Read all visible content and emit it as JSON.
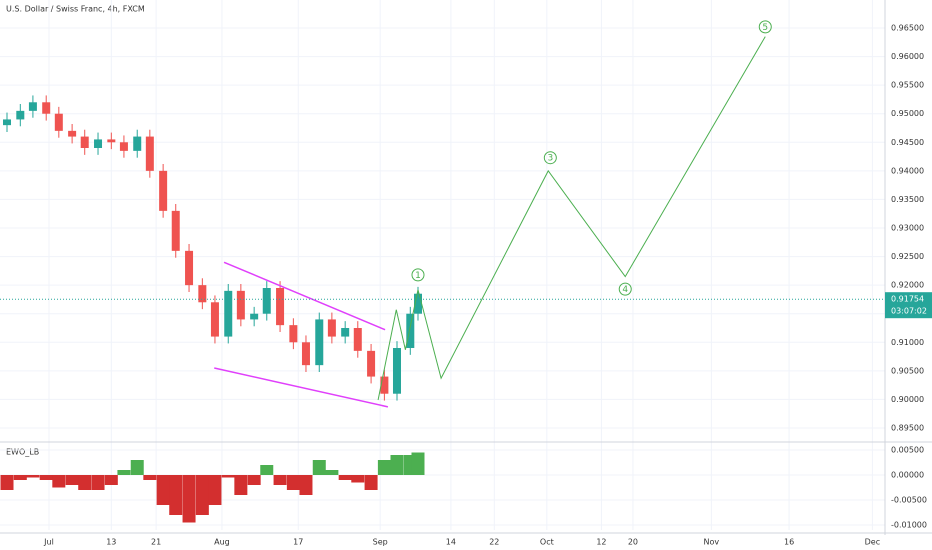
{
  "chart_data": {
    "type": "candlestick",
    "title": "U.S. Dollar / Swiss Franc, 4h, FXCM",
    "up_color": "#26a69a",
    "down_color": "#ef5350",
    "x": [
      1,
      2.9,
      4.7,
      6.6,
      8.4,
      10.3,
      12.1,
      14,
      15.9,
      17.7,
      19.6,
      21.4,
      23.3,
      25.1,
      27,
      28.9,
      30.7,
      32.6,
      34.4,
      36.3,
      38.1,
      40,
      41.9,
      43.7,
      45.6,
      47.4,
      49.3,
      51.1,
      53,
      54.9,
      56.7,
      58.6,
      59.7
    ],
    "open": [
      0.948,
      0.949,
      0.9505,
      0.952,
      0.95,
      0.947,
      0.946,
      0.944,
      0.9455,
      0.945,
      0.9435,
      0.946,
      0.94,
      0.933,
      0.926,
      0.92,
      0.917,
      0.911,
      0.919,
      0.914,
      0.915,
      0.9195,
      0.913,
      0.91,
      0.906,
      0.914,
      0.911,
      0.9125,
      0.9085,
      0.904,
      0.901,
      0.909,
      0.915
    ],
    "high": [
      0.9502,
      0.9517,
      0.9532,
      0.9532,
      0.9512,
      0.9482,
      0.9472,
      0.9467,
      0.9467,
      0.9462,
      0.9472,
      0.9472,
      0.9412,
      0.9342,
      0.9272,
      0.9212,
      0.9182,
      0.9202,
      0.9202,
      0.9162,
      0.9207,
      0.9207,
      0.9142,
      0.9112,
      0.9152,
      0.9152,
      0.9137,
      0.9137,
      0.9097,
      0.9052,
      0.9102,
      0.9162,
      0.9197
    ],
    "low": [
      0.9468,
      0.9478,
      0.9493,
      0.9488,
      0.9458,
      0.9448,
      0.9428,
      0.9428,
      0.9438,
      0.9423,
      0.9423,
      0.9388,
      0.9318,
      0.9248,
      0.9188,
      0.9158,
      0.9098,
      0.9098,
      0.9128,
      0.9128,
      0.9138,
      0.9118,
      0.9088,
      0.9048,
      0.9048,
      0.9098,
      0.9098,
      0.9073,
      0.9028,
      0.8998,
      0.8998,
      0.9078,
      0.9138
    ],
    "close": [
      0.949,
      0.9505,
      0.952,
      0.95,
      0.947,
      0.946,
      0.944,
      0.9455,
      0.945,
      0.9435,
      0.946,
      0.94,
      0.933,
      0.926,
      0.92,
      0.917,
      0.911,
      0.919,
      0.914,
      0.915,
      0.9195,
      0.913,
      0.91,
      0.906,
      0.914,
      0.911,
      0.9125,
      0.9085,
      0.904,
      0.901,
      0.909,
      0.915,
      0.9185
    ],
    "xlim": [
      0,
      126.4
    ],
    "xticks": [
      {
        "value": 7,
        "label": "Jul"
      },
      {
        "value": 15.9,
        "label": "13"
      },
      {
        "value": 22.3,
        "label": "21"
      },
      {
        "value": 31.7,
        "label": "Aug"
      },
      {
        "value": 42.6,
        "label": "17"
      },
      {
        "value": 54.3,
        "label": "Sep"
      },
      {
        "value": 64.4,
        "label": "14"
      },
      {
        "value": 70.6,
        "label": "22"
      },
      {
        "value": 78.1,
        "label": "Oct"
      },
      {
        "value": 85.9,
        "label": "12"
      },
      {
        "value": 90.4,
        "label": "20"
      },
      {
        "value": 101.6,
        "label": "Nov"
      },
      {
        "value": 112.7,
        "label": "16"
      },
      {
        "value": 124.6,
        "label": "Dec"
      }
    ],
    "ylim": [
      0.8929,
      0.9699
    ],
    "yticks": [
      {
        "value": 0.895,
        "label": "0.89500"
      },
      {
        "value": 0.9,
        "label": "0.90000"
      },
      {
        "value": 0.905,
        "label": "0.90500"
      },
      {
        "value": 0.91,
        "label": "0.91000"
      },
      {
        "value": 0.915,
        "label": "0.91500"
      },
      {
        "value": 0.92,
        "label": "0.92000"
      },
      {
        "value": 0.925,
        "label": "0.92500"
      },
      {
        "value": 0.93,
        "label": "0.93000"
      },
      {
        "value": 0.935,
        "label": "0.93500"
      },
      {
        "value": 0.94,
        "label": "0.94000"
      },
      {
        "value": 0.945,
        "label": "0.94500"
      },
      {
        "value": 0.95,
        "label": "0.95000"
      },
      {
        "value": 0.955,
        "label": "0.95500"
      },
      {
        "value": 0.96,
        "label": "0.96000"
      },
      {
        "value": 0.965,
        "label": "0.96500"
      }
    ],
    "grid": true,
    "last_price": 0.91754,
    "countdown": "03:07:02",
    "last_price_color": "#26a69a",
    "projection": {
      "color": "#4caf50",
      "x": [
        54,
        56.6,
        57.9,
        59.7,
        63,
        78.3,
        89.3,
        109.3
      ],
      "values": [
        0.8999,
        0.9157,
        0.9087,
        0.9192,
        0.9037,
        0.94,
        0.9215,
        0.9635
      ]
    },
    "trendlines": [
      {
        "color": "#e040fb",
        "x": [
          32,
          55
        ],
        "values": [
          0.924,
          0.9122
        ]
      },
      {
        "color": "#e040fb",
        "x": [
          30.6,
          55.4
        ],
        "values": [
          0.9055,
          0.8987
        ]
      }
    ],
    "annotations": [
      {
        "label": "1",
        "x": 59.7,
        "value": 0.9218
      },
      {
        "label": "3",
        "x": 78.6,
        "value": 0.9423
      },
      {
        "label": "4",
        "x": 89.3,
        "value": 0.9193
      },
      {
        "label": "5",
        "x": 109.3,
        "value": 0.9652
      }
    ],
    "indicator": {
      "name": "EWO_LB",
      "up_color": "#4caf50",
      "down_color": "#d32f2f",
      "values": [
        -0.003,
        -0.001,
        -0.0005,
        -0.001,
        -0.0025,
        -0.002,
        -0.003,
        -0.003,
        -0.002,
        0.001,
        0.003,
        -0.001,
        -0.006,
        -0.008,
        -0.0095,
        -0.008,
        -0.006,
        -0.0005,
        -0.004,
        -0.002,
        0.002,
        -0.002,
        -0.003,
        -0.004,
        0.003,
        0.001,
        -0.001,
        -0.0015,
        -0.003,
        0.003,
        0.004,
        0.004,
        0.0045
      ],
      "ylim": [
        -0.011,
        0.006
      ],
      "yticks": [
        {
          "value": 0.005,
          "label": "0.00500"
        },
        {
          "value": 0,
          "label": "0.00000"
        },
        {
          "value": -0.005,
          "label": "-0.00500"
        },
        {
          "value": -0.01,
          "label": "-0.01000"
        }
      ]
    }
  }
}
